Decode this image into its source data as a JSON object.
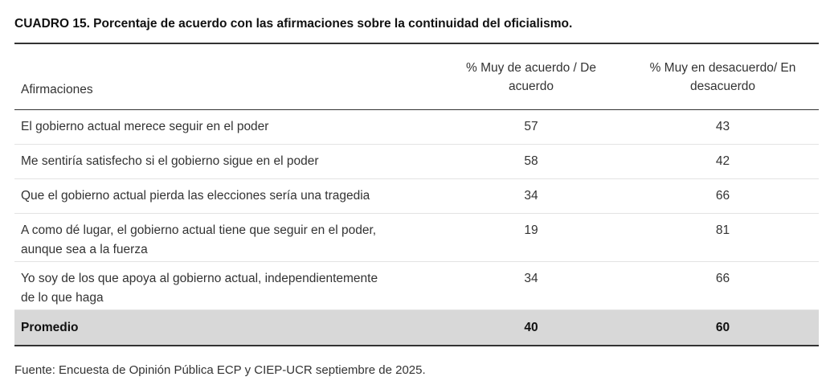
{
  "title": "CUADRO 15. Porcentaje de acuerdo con las afirmaciones sobre la continuidad del oficialismo.",
  "table": {
    "headers": {
      "col1": "Afirmaciones",
      "col2": "% Muy de acuerdo / De acuerdo",
      "col3": "% Muy en desacuerdo/ En desacuerdo"
    },
    "rows": [
      {
        "label": "El gobierno actual merece seguir en el poder",
        "agree": "57",
        "disagree": "43"
      },
      {
        "label": "Me sentiría satisfecho si el gobierno sigue en el poder",
        "agree": "58",
        "disagree": "42"
      },
      {
        "label": "Que el gobierno actual pierda las elecciones sería una tragedia",
        "agree": "34",
        "disagree": "66"
      },
      {
        "label": "A como dé lugar, el gobierno actual tiene que seguir en el poder, aunque sea a la fuerza",
        "agree": "19",
        "disagree": "81"
      },
      {
        "label": "Yo soy de los que apoya al gobierno actual, independientemente de lo que haga",
        "agree": "34",
        "disagree": "66"
      }
    ],
    "average": {
      "label": "Promedio",
      "agree": "40",
      "disagree": "60"
    }
  },
  "source": "Fuente: Encuesta de Opinión Pública ECP y CIEP-UCR septiembre de 2025."
}
